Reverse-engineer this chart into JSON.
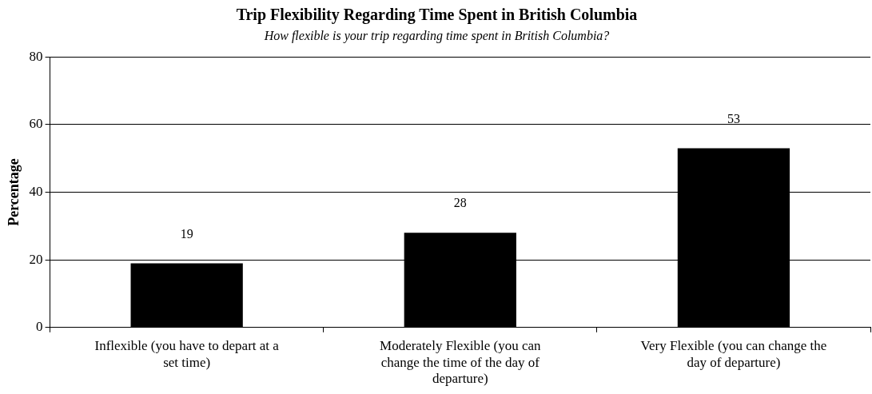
{
  "chart_data": {
    "type": "bar",
    "title": "Trip Flexibility Regarding Time Spent in British Columbia",
    "subtitle": "How flexible is your trip regarding time spent in British Columbia?",
    "ylabel": "Percentage",
    "categories": [
      "Inflexible (you have to depart at a set time)",
      "Moderately Flexible (you can change the time of the day of departure)",
      "Very Flexible (you can change the day of departure)"
    ],
    "values": [
      19,
      28,
      53
    ],
    "color": "#000000",
    "ylim": [
      0,
      80
    ],
    "yticks": [
      0,
      20,
      40,
      60,
      80
    ],
    "grid": "y",
    "legend": false,
    "data_labels": true
  }
}
